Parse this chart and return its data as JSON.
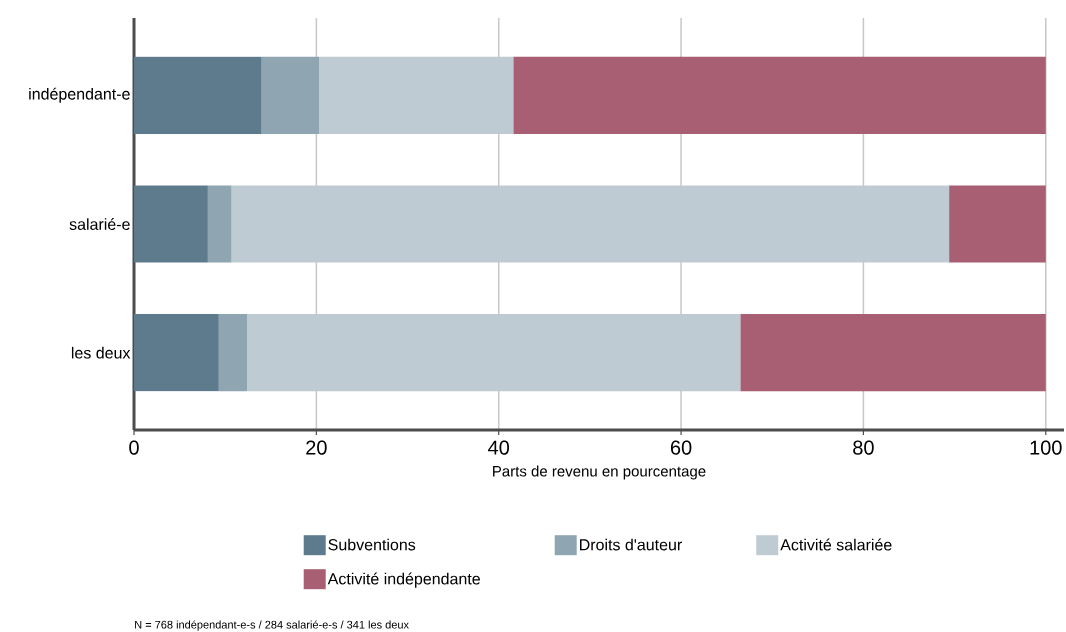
{
  "chart_data": {
    "type": "bar",
    "orientation": "horizontal",
    "stacked": true,
    "categories": [
      "indépendant-e",
      "salarié-e",
      "les deux"
    ],
    "series": [
      {
        "name": "Subventions",
        "color": "#5e7b8e",
        "values": [
          14.0,
          8.1,
          9.3
        ]
      },
      {
        "name": "Droits d'auteur",
        "color": "#8fa5b2",
        "values": [
          6.3,
          2.6,
          3.1
        ]
      },
      {
        "name": "Activité salariée",
        "color": "#bfcbd3",
        "values": [
          21.3,
          78.7,
          54.1
        ]
      },
      {
        "name": "Activité indépendante",
        "color": "#a85e73",
        "values": [
          58.4,
          10.6,
          33.5
        ]
      }
    ],
    "xlabel": "Parts de revenu en pourcentage",
    "xlim": [
      0,
      102
    ],
    "xticks": [
      0,
      20,
      40,
      60,
      80,
      100
    ],
    "grid": "x",
    "legend": "bottom",
    "annotations": [
      "N = 768 indépendant-e-s / 284 salarié-e-s / 341 les deux"
    ]
  }
}
